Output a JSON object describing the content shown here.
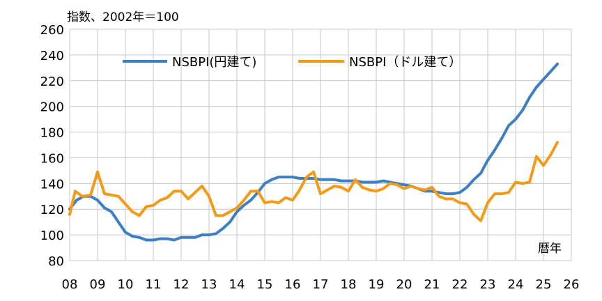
{
  "chart_data": {
    "type": "line",
    "title": "",
    "unit_label": "指数、2002年＝100",
    "xlabel": "暦年",
    "ylabel": "",
    "ylim": [
      80,
      260
    ],
    "yticks": [
      80,
      100,
      120,
      140,
      160,
      180,
      200,
      220,
      240,
      260
    ],
    "xlim": [
      2008,
      2026
    ],
    "xtick_labels": [
      "08",
      "09",
      "10",
      "11",
      "12",
      "13",
      "14",
      "15",
      "16",
      "17",
      "18",
      "19",
      "20",
      "21",
      "22",
      "23",
      "24",
      "25",
      "26"
    ],
    "grid": true,
    "legend_position": "top-center",
    "series": [
      {
        "name": "NSBPI(円建て)",
        "color": "#3b7fc4",
        "points": [
          [
            2008.0,
            120
          ],
          [
            2008.25,
            127
          ],
          [
            2008.5,
            130
          ],
          [
            2008.75,
            130
          ],
          [
            2009.0,
            127
          ],
          [
            2009.25,
            121
          ],
          [
            2009.5,
            118
          ],
          [
            2009.75,
            110
          ],
          [
            2010.0,
            102
          ],
          [
            2010.25,
            99
          ],
          [
            2010.5,
            98
          ],
          [
            2010.75,
            96
          ],
          [
            2011.0,
            96
          ],
          [
            2011.25,
            97
          ],
          [
            2011.5,
            97
          ],
          [
            2011.75,
            96
          ],
          [
            2012.0,
            98
          ],
          [
            2012.25,
            98
          ],
          [
            2012.5,
            98
          ],
          [
            2012.75,
            100
          ],
          [
            2013.0,
            100
          ],
          [
            2013.25,
            101
          ],
          [
            2013.5,
            105
          ],
          [
            2013.75,
            110
          ],
          [
            2014.0,
            118
          ],
          [
            2014.25,
            123
          ],
          [
            2014.5,
            127
          ],
          [
            2014.75,
            133
          ],
          [
            2015.0,
            140
          ],
          [
            2015.25,
            143
          ],
          [
            2015.5,
            145
          ],
          [
            2015.75,
            145
          ],
          [
            2016.0,
            145
          ],
          [
            2016.25,
            144
          ],
          [
            2016.5,
            144
          ],
          [
            2016.75,
            144
          ],
          [
            2017.0,
            143
          ],
          [
            2017.25,
            143
          ],
          [
            2017.5,
            143
          ],
          [
            2017.75,
            142
          ],
          [
            2018.0,
            142
          ],
          [
            2018.25,
            142
          ],
          [
            2018.5,
            141
          ],
          [
            2018.75,
            141
          ],
          [
            2019.0,
            141
          ],
          [
            2019.25,
            142
          ],
          [
            2019.5,
            141
          ],
          [
            2019.75,
            140
          ],
          [
            2020.0,
            139
          ],
          [
            2020.25,
            138
          ],
          [
            2020.5,
            136
          ],
          [
            2020.75,
            134
          ],
          [
            2021.0,
            134
          ],
          [
            2021.25,
            133
          ],
          [
            2021.5,
            132
          ],
          [
            2021.75,
            132
          ],
          [
            2022.0,
            133
          ],
          [
            2022.25,
            137
          ],
          [
            2022.5,
            143
          ],
          [
            2022.75,
            148
          ],
          [
            2023.0,
            158
          ],
          [
            2023.25,
            166
          ],
          [
            2023.5,
            175
          ],
          [
            2023.75,
            185
          ],
          [
            2024.0,
            190
          ],
          [
            2024.25,
            197
          ],
          [
            2024.5,
            207
          ],
          [
            2024.75,
            215
          ],
          [
            2025.0,
            221
          ],
          [
            2025.25,
            227
          ],
          [
            2025.5,
            233
          ]
        ]
      },
      {
        "name": "NSBPI（ドル建て）",
        "color": "#f39a17",
        "points": [
          [
            2008.0,
            116
          ],
          [
            2008.2,
            134
          ],
          [
            2008.45,
            130
          ],
          [
            2008.75,
            131
          ],
          [
            2009.0,
            149
          ],
          [
            2009.25,
            132
          ],
          [
            2009.5,
            131
          ],
          [
            2009.75,
            130
          ],
          [
            2010.0,
            124
          ],
          [
            2010.25,
            118
          ],
          [
            2010.5,
            115
          ],
          [
            2010.75,
            122
          ],
          [
            2011.0,
            123
          ],
          [
            2011.25,
            127
          ],
          [
            2011.5,
            129
          ],
          [
            2011.75,
            134
          ],
          [
            2012.0,
            134
          ],
          [
            2012.25,
            128
          ],
          [
            2012.5,
            133
          ],
          [
            2012.75,
            138
          ],
          [
            2013.0,
            130
          ],
          [
            2013.25,
            115
          ],
          [
            2013.5,
            115
          ],
          [
            2013.75,
            118
          ],
          [
            2014.0,
            121
          ],
          [
            2014.25,
            127
          ],
          [
            2014.5,
            134
          ],
          [
            2014.75,
            134
          ],
          [
            2015.0,
            125
          ],
          [
            2015.25,
            126
          ],
          [
            2015.5,
            125
          ],
          [
            2015.75,
            129
          ],
          [
            2016.0,
            127
          ],
          [
            2016.25,
            135
          ],
          [
            2016.5,
            145
          ],
          [
            2016.75,
            149
          ],
          [
            2017.0,
            132
          ],
          [
            2017.25,
            135
          ],
          [
            2017.5,
            138
          ],
          [
            2017.75,
            137
          ],
          [
            2018.0,
            134
          ],
          [
            2018.25,
            143
          ],
          [
            2018.5,
            137
          ],
          [
            2018.75,
            135
          ],
          [
            2019.0,
            134
          ],
          [
            2019.25,
            136
          ],
          [
            2019.5,
            140
          ],
          [
            2019.75,
            139
          ],
          [
            2020.0,
            136
          ],
          [
            2020.25,
            138
          ],
          [
            2020.5,
            136
          ],
          [
            2020.75,
            135
          ],
          [
            2021.0,
            137
          ],
          [
            2021.25,
            130
          ],
          [
            2021.5,
            128
          ],
          [
            2021.75,
            128
          ],
          [
            2022.0,
            125
          ],
          [
            2022.25,
            124
          ],
          [
            2022.5,
            116
          ],
          [
            2022.75,
            111
          ],
          [
            2023.0,
            125
          ],
          [
            2023.25,
            132
          ],
          [
            2023.5,
            132
          ],
          [
            2023.75,
            133
          ],
          [
            2024.0,
            141
          ],
          [
            2024.25,
            140
          ],
          [
            2024.5,
            141
          ],
          [
            2024.75,
            161
          ],
          [
            2025.0,
            154
          ],
          [
            2025.25,
            162
          ],
          [
            2025.5,
            172
          ]
        ]
      }
    ]
  }
}
